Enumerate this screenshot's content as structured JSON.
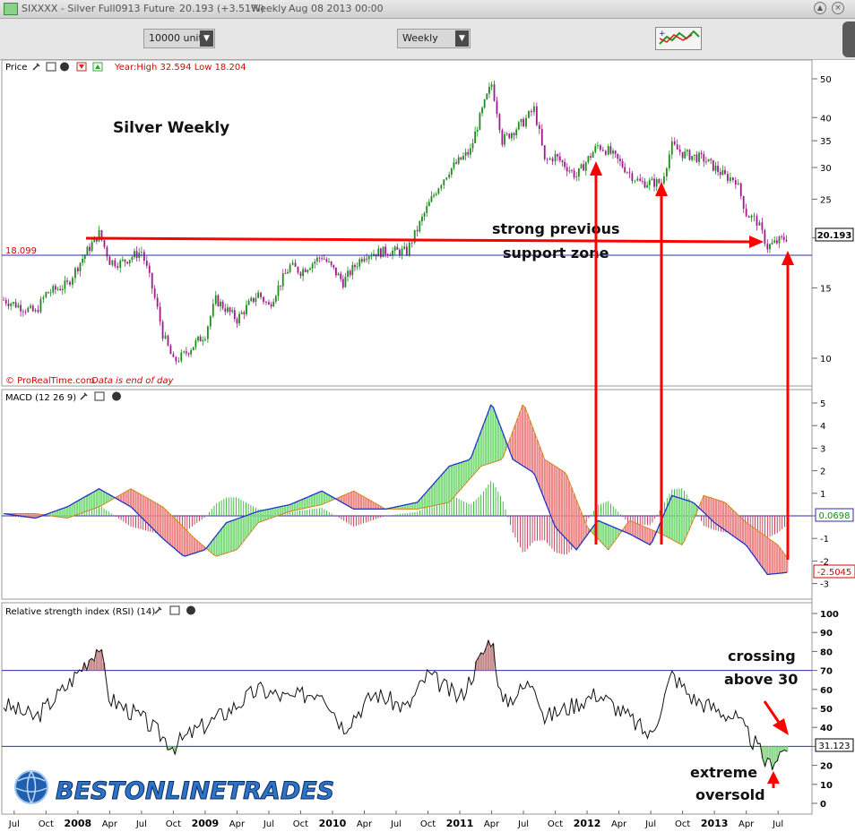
{
  "titlebar": {
    "symbol": "SIXXXX - Silver Full0913 Future",
    "price": "20.193 (+3.51%)",
    "period": "Weekly",
    "date": "Aug 08 2013 00:00"
  },
  "toolbar": {
    "units": "10000 units",
    "timeframe": "Weekly"
  },
  "price_panel": {
    "label": "Price",
    "yearinfo": "Year:High 32.594 Low 18.204",
    "title": "Silver Weekly",
    "support_level": "18.099",
    "last_price": "20.193",
    "annotation_line1": "strong previous",
    "annotation_line2": "support zone",
    "copyright": "© ProRealTime.com",
    "data_note": "Data is end of day",
    "y_ticks": [
      "50",
      "40",
      "35",
      "30",
      "25",
      "20",
      "15",
      "10"
    ]
  },
  "macd_panel": {
    "label": "MACD (12 26 9)",
    "y_ticks": [
      "5",
      "4",
      "3",
      "2",
      "1",
      "0",
      "-1",
      "-2",
      "-3"
    ],
    "signal_value": "0.0698",
    "macd_value": "-2.5045"
  },
  "rsi_panel": {
    "label": "Relative strength index (RSI) (14)",
    "y_ticks": [
      "100",
      "90",
      "80",
      "70",
      "60",
      "50",
      "40",
      "30",
      "20",
      "10",
      "0"
    ],
    "last_value": "31.123",
    "annotation_cross_1": "crossing",
    "annotation_cross_2": "above 30",
    "annotation_os_1": "extreme",
    "annotation_os_2": "oversold"
  },
  "x_axis": {
    "labels": [
      "Jul",
      "Oct",
      "2008",
      "Apr",
      "Jul",
      "Oct",
      "2009",
      "Apr",
      "Jul",
      "Oct",
      "2010",
      "Apr",
      "Jul",
      "Oct",
      "2011",
      "Apr",
      "Jul",
      "Oct",
      "2012",
      "Apr",
      "Jul",
      "Oct",
      "2013",
      "Apr",
      "Jul"
    ]
  },
  "logo": {
    "text": "BESTONLINETRADES"
  },
  "colors": {
    "up": "#1e8c1e",
    "down": "#a01a8a",
    "annotation": "#ff0000",
    "ref_line": "#2b2bb0"
  },
  "chart_data": [
    {
      "type": "candlestick",
      "title": "Silver Weekly",
      "scale": "log",
      "ylim": [
        9,
        54
      ],
      "x_range": [
        "2007-06",
        "2013-08"
      ],
      "horizontal_lines": [
        18.099
      ],
      "series": [
        {
          "name": "Price",
          "points": [
            [
              "2007-06",
              14.0
            ],
            [
              "2007-09",
              13.0
            ],
            [
              "2007-10",
              14.5
            ],
            [
              "2007-12",
              15.3
            ],
            [
              "2008-01",
              17.0
            ],
            [
              "2008-03",
              20.5
            ],
            [
              "2008-04",
              17.5
            ],
            [
              "2008-05",
              17.3
            ],
            [
              "2008-07",
              18.5
            ],
            [
              "2008-08",
              15.0
            ],
            [
              "2008-09",
              11.5
            ],
            [
              "2008-10",
              9.8
            ],
            [
              "2008-11",
              10.2
            ],
            [
              "2009-01",
              11.5
            ],
            [
              "2009-02",
              14.0
            ],
            [
              "2009-04",
              12.5
            ],
            [
              "2009-06",
              14.5
            ],
            [
              "2009-07",
              13.5
            ],
            [
              "2009-09",
              17.0
            ],
            [
              "2009-10",
              16.5
            ],
            [
              "2009-12",
              18.0
            ],
            [
              "2010-02",
              15.5
            ],
            [
              "2010-04",
              18.2
            ],
            [
              "2010-06",
              18.5
            ],
            [
              "2010-08",
              18.5
            ],
            [
              "2010-09",
              21.0
            ],
            [
              "2010-11",
              27.0
            ],
            [
              "2010-12",
              29.5
            ],
            [
              "2011-02",
              33.0
            ],
            [
              "2011-04",
              48.5
            ],
            [
              "2011-05",
              35.0
            ],
            [
              "2011-07",
              39.0
            ],
            [
              "2011-08",
              42.0
            ],
            [
              "2011-09",
              31.0
            ],
            [
              "2011-10",
              32.0
            ],
            [
              "2011-12",
              28.5
            ],
            [
              "2012-02",
              34.0
            ],
            [
              "2012-03",
              33.0
            ],
            [
              "2012-05",
              29.0
            ],
            [
              "2012-06",
              27.5
            ],
            [
              "2012-08",
              27.5
            ],
            [
              "2012-09",
              34.0
            ],
            [
              "2012-10",
              32.5
            ],
            [
              "2012-12",
              31.5
            ],
            [
              "2013-02",
              28.5
            ],
            [
              "2013-03",
              28.0
            ],
            [
              "2013-04",
              23.0
            ],
            [
              "2013-05",
              22.0
            ],
            [
              "2013-06",
              19.0
            ],
            [
              "2013-08",
              20.2
            ]
          ]
        }
      ]
    },
    {
      "type": "line",
      "title": "MACD (12 26 9)",
      "ylim": [
        -3.2,
        5.5
      ],
      "series": [
        {
          "name": "MACD",
          "points": [
            [
              "2007-06",
              0.1
            ],
            [
              "2007-09",
              -0.1
            ],
            [
              "2007-12",
              0.4
            ],
            [
              "2008-03",
              1.2
            ],
            [
              "2008-06",
              0.4
            ],
            [
              "2008-09",
              -1.0
            ],
            [
              "2008-11",
              -1.8
            ],
            [
              "2009-01",
              -1.5
            ],
            [
              "2009-03",
              -0.3
            ],
            [
              "2009-06",
              0.2
            ],
            [
              "2009-09",
              0.5
            ],
            [
              "2009-12",
              1.1
            ],
            [
              "2010-03",
              0.3
            ],
            [
              "2010-06",
              0.3
            ],
            [
              "2010-09",
              0.6
            ],
            [
              "2010-12",
              2.2
            ],
            [
              "2011-02",
              2.5
            ],
            [
              "2011-04",
              5.0
            ],
            [
              "2011-06",
              2.5
            ],
            [
              "2011-08",
              1.9
            ],
            [
              "2011-10",
              -0.5
            ],
            [
              "2011-12",
              -1.5
            ],
            [
              "2012-02",
              -0.2
            ],
            [
              "2012-05",
              -0.8
            ],
            [
              "2012-07",
              -1.3
            ],
            [
              "2012-09",
              0.9
            ],
            [
              "2012-11",
              0.6
            ],
            [
              "2013-01",
              -0.3
            ],
            [
              "2013-04",
              -1.3
            ],
            [
              "2013-06",
              -2.6
            ],
            [
              "2013-08",
              -2.5
            ]
          ]
        }
      ]
    },
    {
      "type": "line",
      "title": "Relative strength index (RSI) (14)",
      "ylim": [
        0,
        100
      ],
      "horizontal_lines": [
        70,
        30
      ],
      "series": [
        {
          "name": "RSI",
          "points": [
            [
              "2007-06",
              52
            ],
            [
              "2007-09",
              45
            ],
            [
              "2007-12",
              62
            ],
            [
              "2008-03",
              83
            ],
            [
              "2008-04",
              55
            ],
            [
              "2008-07",
              45
            ],
            [
              "2008-09",
              35
            ],
            [
              "2008-10",
              30
            ],
            [
              "2008-12",
              38
            ],
            [
              "2009-03",
              48
            ],
            [
              "2009-06",
              60
            ],
            [
              "2009-09",
              55
            ],
            [
              "2009-12",
              60
            ],
            [
              "2010-02",
              40
            ],
            [
              "2010-05",
              58
            ],
            [
              "2010-08",
              50
            ],
            [
              "2010-10",
              68
            ],
            [
              "2011-01",
              55
            ],
            [
              "2011-04",
              88
            ],
            [
              "2011-05",
              52
            ],
            [
              "2011-08",
              65
            ],
            [
              "2011-09",
              45
            ],
            [
              "2011-11",
              50
            ],
            [
              "2012-02",
              58
            ],
            [
              "2012-05",
              45
            ],
            [
              "2012-07",
              35
            ],
            [
              "2012-09",
              68
            ],
            [
              "2012-11",
              55
            ],
            [
              "2013-01",
              50
            ],
            [
              "2013-03",
              45
            ],
            [
              "2013-05",
              30
            ],
            [
              "2013-06",
              20
            ],
            [
              "2013-08",
              31
            ]
          ]
        }
      ]
    }
  ]
}
